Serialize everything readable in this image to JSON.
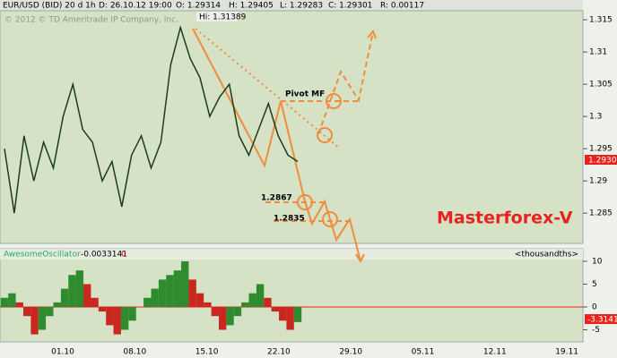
{
  "header": {
    "symbol": "EUR/USD (BID) 20 d 1h",
    "date": "D: 26.10.12 19:00",
    "open": "O: 1.29314",
    "high": "H: 1.29405",
    "low": "L: 1.29283",
    "close": "C: 1.29301",
    "range": "R: 0.00117",
    "copyright": "© 2012 © TD Ameritrade IP Company, Inc.",
    "hi_label": "Hi: 1.31389",
    "price_tag": "1.2930"
  },
  "annotations": {
    "pivot": "Pivot MF",
    "level1": "1.2867",
    "level2": "1.2835",
    "brand": "Masterforex-V"
  },
  "chart_data": [
    {
      "type": "line",
      "x_tick_labels": [
        "01.10",
        "08.10",
        "15.10",
        "22.10",
        "29.10",
        "05.11",
        "12.11",
        "19.11"
      ],
      "series": [
        {
          "color": "#1a3d1a",
          "values": [
            1.295,
            1.285,
            1.297,
            1.29,
            1.296,
            1.292,
            1.3,
            1.305,
            1.298,
            1.296,
            1.29,
            1.293,
            1.286,
            1.294,
            1.297,
            1.292,
            1.296,
            1.308,
            1.3138,
            1.309,
            1.306,
            1.3,
            1.303,
            1.305,
            1.297,
            1.294,
            1.298,
            1.302,
            1.297,
            1.294,
            1.293
          ]
        }
      ],
      "ylim": [
        1.2803,
        1.3164
      ],
      "yticks": [
        1.315,
        1.31,
        1.305,
        1.3,
        1.295,
        1.29,
        1.285
      ]
    },
    {
      "type": "bar",
      "title": "AwesomeOscillator",
      "current": "-0.0033141",
      "zero_label": "0",
      "units": "<thousandths>",
      "last_label": "-3.3141",
      "values": [
        2,
        3,
        1,
        -2,
        -6,
        -5,
        -2,
        1,
        4,
        7,
        8,
        5,
        2,
        -1,
        -4,
        -6,
        -5,
        -3,
        0,
        2,
        4,
        6,
        7,
        8,
        10,
        6,
        3,
        1,
        -2,
        -5,
        -4,
        -2,
        1,
        3,
        5,
        2,
        -1,
        -3,
        -5,
        -3.3141
      ],
      "up_color": "#2e8b2e",
      "down_color": "#c8281e",
      "ylim": [
        -7.65,
        10.78
      ],
      "yticks": [
        10,
        5,
        0,
        -5
      ]
    }
  ]
}
